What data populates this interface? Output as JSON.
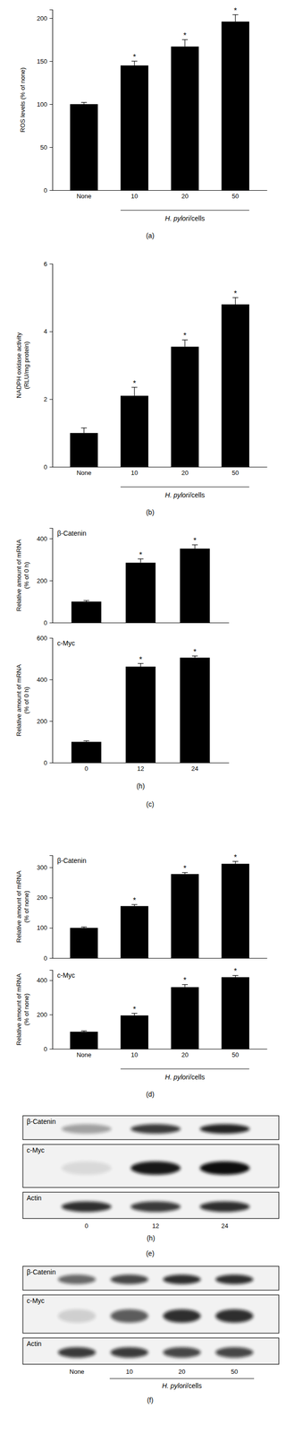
{
  "chart_data": [
    {
      "type": "bar",
      "panel": "(a)",
      "ylabel": [
        "ROS levels (% of none)"
      ],
      "categories": [
        "None",
        "10",
        "20",
        "50"
      ],
      "values": [
        100,
        145,
        167,
        196
      ],
      "errors": [
        2,
        5,
        8,
        8
      ],
      "significance": [
        null,
        "*",
        "*",
        "*"
      ],
      "group_label": "H. pylori/cells",
      "color": "#000000",
      "ylim": [
        0,
        210
      ],
      "yticks": [
        0,
        50,
        100,
        150,
        200
      ]
    },
    {
      "type": "bar",
      "panel": "(b)",
      "ylabel": [
        "NADPH oxidase activity",
        "(RLU/mg protein)"
      ],
      "categories": [
        "None",
        "10",
        "20",
        "50"
      ],
      "values": [
        1.0,
        2.1,
        3.55,
        4.8
      ],
      "errors": [
        0.15,
        0.25,
        0.2,
        0.2
      ],
      "significance": [
        null,
        "*",
        "*",
        "*"
      ],
      "group_label": "H. pylori/cells",
      "color": "#000000",
      "ylim": [
        0,
        6
      ],
      "yticks": [
        0,
        2,
        4,
        6
      ]
    },
    {
      "type": "bar",
      "title": "β-Catenin",
      "ylabel": [
        "Relative amount of mRNA",
        "(% of 0 h)"
      ],
      "categories": [
        null,
        null,
        null
      ],
      "values": [
        100,
        285,
        352
      ],
      "errors": [
        5,
        18,
        18
      ],
      "significance": [
        null,
        "*",
        "*"
      ],
      "color": "#000000",
      "ylim": [
        0,
        450
      ],
      "yticks": [
        0,
        200,
        400
      ]
    },
    {
      "type": "bar",
      "panel": "(c)",
      "title": "c-Myc",
      "ylabel": [
        "Relative amount of mRNA",
        "(% of 0 h)"
      ],
      "categories": [
        "0",
        "12",
        "24"
      ],
      "values": [
        100,
        462,
        505
      ],
      "errors": [
        5,
        15,
        8
      ],
      "significance": [
        null,
        "*",
        "*"
      ],
      "xlabel": "(h)",
      "color": "#000000",
      "ylim": [
        0,
        600
      ],
      "yticks": [
        0,
        200,
        400,
        600
      ]
    },
    {
      "type": "bar",
      "title": "β-Catenin",
      "ylabel": [
        "Relative amount of mRNA",
        "(% of none)"
      ],
      "categories": [
        null,
        null,
        null,
        null
      ],
      "values": [
        100,
        172,
        278,
        312
      ],
      "errors": [
        3,
        5,
        5,
        8
      ],
      "significance": [
        null,
        "*",
        "*",
        "*"
      ],
      "color": "#000000",
      "ylim": [
        0,
        340
      ],
      "yticks": [
        0,
        100,
        200,
        300
      ]
    },
    {
      "type": "bar",
      "panel": "(d)",
      "title": "c-Myc",
      "ylabel": [
        "Relative amount of mRNA",
        "(% of none)"
      ],
      "categories": [
        "None",
        "10",
        "20",
        "50"
      ],
      "values": [
        100,
        195,
        360,
        418
      ],
      "errors": [
        5,
        12,
        15,
        10
      ],
      "significance": [
        null,
        "*",
        "*",
        "*"
      ],
      "group_label": "H. pylori/cells",
      "color": "#000000",
      "ylim": [
        0,
        460
      ],
      "yticks": [
        0,
        200,
        400
      ]
    },
    {
      "type": "blot",
      "panel": "(e)",
      "xlabel": "(h)",
      "categories": [
        "0",
        "12",
        "24"
      ],
      "rows": [
        {
          "name": "β-Catenin",
          "values": [
            0.35,
            0.8,
            0.9
          ]
        },
        {
          "name": "c-Myc",
          "values": [
            0.1,
            0.95,
            1.0
          ]
        },
        {
          "name": "Actin",
          "values": [
            0.85,
            0.8,
            0.85
          ]
        }
      ]
    },
    {
      "type": "blot",
      "panel": "(f)",
      "group_label": "H. pylori/cells",
      "categories": [
        "None",
        "10",
        "20",
        "50"
      ],
      "rows": [
        {
          "name": "β-Catenin",
          "values": [
            0.6,
            0.75,
            0.85,
            0.85
          ]
        },
        {
          "name": "c-Myc",
          "values": [
            0.15,
            0.65,
            0.85,
            0.85
          ]
        },
        {
          "name": "Actin",
          "values": [
            0.8,
            0.8,
            0.75,
            0.75
          ]
        }
      ]
    }
  ]
}
